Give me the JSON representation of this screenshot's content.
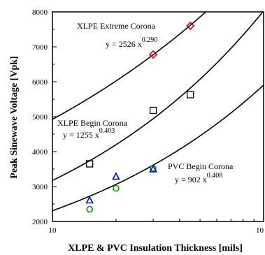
{
  "chart_data": {
    "type": "scatter",
    "xlabel": "XLPE & PVC Insulation Thickness [mils]",
    "ylabel": "Peak Sinewave Voltage  [Vpk]",
    "xscale": "log",
    "xlim": [
      10,
      100
    ],
    "ylim": [
      2000,
      8000
    ],
    "x_tick_labels": [
      "10",
      "10"
    ],
    "y_tick_labels": [
      "2000",
      "3000",
      "4000",
      "5000",
      "6000",
      "7000",
      "8000"
    ],
    "grid": false,
    "series": [
      {
        "name": "XLPE Extreme Corona",
        "marker": "diamond",
        "color": "#cc0000",
        "points": [
          [
            30,
            6780
          ],
          [
            45,
            7600
          ]
        ],
        "fit": {
          "a": 2526,
          "b": 0.29,
          "text": "y = 2526 x",
          "exponent": "0.290"
        }
      },
      {
        "name": "XLPE Begin Corona",
        "marker": "square",
        "color": "#000000",
        "points": [
          [
            15,
            3650
          ],
          [
            30,
            5180
          ],
          [
            45,
            5630
          ]
        ],
        "fit": {
          "a": 1255,
          "b": 0.403,
          "text": "y = 1255 x",
          "exponent": "0.403"
        }
      },
      {
        "name": "PVC Begin Corona",
        "marker": "circle",
        "color": "#009900",
        "points": [
          [
            15,
            2350
          ],
          [
            20,
            2950
          ],
          [
            30,
            3520
          ]
        ],
        "fit": {
          "a": 902,
          "b": 0.408,
          "text": "y = 902 x",
          "exponent": "0.408"
        }
      },
      {
        "name": "",
        "marker": "triangle",
        "color": "#0000cc",
        "points": [
          [
            15,
            2600
          ],
          [
            20,
            3280
          ],
          [
            30,
            3490
          ]
        ]
      }
    ]
  }
}
